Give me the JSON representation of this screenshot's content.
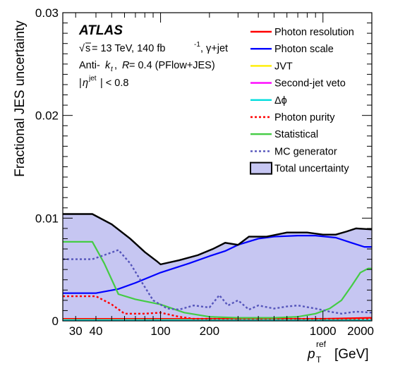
{
  "chart_data": {
    "type": "line",
    "title": "",
    "ylabel": "Fractional JES uncertainty",
    "xlabel": {
      "symbol": "p",
      "subscript": "T",
      "superscript": "ref",
      "unit": "[GeV]"
    },
    "x_scale": "log",
    "xlim": [
      25,
      2000
    ],
    "ylim": [
      0,
      0.03
    ],
    "x_ticks": [
      30,
      40,
      100,
      200,
      1000,
      2000
    ],
    "x_tick_labels": [
      "30",
      "40",
      "100",
      "200",
      "1000",
      "2000"
    ],
    "y_ticks": [
      0,
      0.01,
      0.02,
      0.03
    ],
    "y_tick_labels": [
      "0",
      "0.01",
      "0.02",
      "0.03"
    ],
    "grid": false,
    "legend_position": "top-right",
    "annotations": {
      "experiment": "ATLAS",
      "energy_line": {
        "sqrt_s": "s",
        "rest": " = 13 TeV, 140 fb",
        "sup": "-1",
        "tail": ", γ+jet"
      },
      "algo_line": {
        "pre": "Anti-",
        "k": "k",
        "k_sub": "t",
        "mid": ", ",
        "R": "R",
        "post": " = 0.4 (PFlow+JES)"
      },
      "eta_line": {
        "pre": "|",
        "eta": "η",
        "sup": "jet",
        "post": "| < 0.8"
      }
    },
    "series": [
      {
        "name": "Photon resolution",
        "color": "#ff0000",
        "style": "solid",
        "x": [
          25,
          100,
          200,
          500,
          1000,
          2000
        ],
        "y": [
          0.0002,
          0.0002,
          0.0002,
          0.0002,
          0.0002,
          0.0003
        ]
      },
      {
        "name": "Photon scale",
        "color": "#0000ff",
        "style": "solid",
        "x": [
          25,
          40,
          55,
          70,
          100,
          150,
          200,
          250,
          300,
          400,
          500,
          700,
          900,
          1200,
          1500,
          1800,
          2000
        ],
        "y": [
          0.0027,
          0.0027,
          0.0031,
          0.0037,
          0.0047,
          0.0056,
          0.0063,
          0.0068,
          0.0074,
          0.008,
          0.0082,
          0.0083,
          0.0083,
          0.0081,
          0.0076,
          0.0072,
          0.0072
        ]
      },
      {
        "name": "JVT",
        "color": "#ffee00",
        "style": "solid",
        "x": [
          25,
          2000
        ],
        "y": [
          0.0001,
          0.0001
        ]
      },
      {
        "name": "Second-jet veto",
        "color": "#ff00ff",
        "style": "solid",
        "x": [
          25,
          2000
        ],
        "y": [
          5e-05,
          5e-05
        ]
      },
      {
        "name": "Δϕ",
        "color": "#00dddd",
        "style": "solid",
        "x": [
          25,
          2000
        ],
        "y": [
          8e-05,
          8e-05
        ]
      },
      {
        "name": "Photon purity",
        "color": "#ff0000",
        "style": "dotted",
        "x": [
          25,
          40,
          50,
          60,
          80,
          100,
          130,
          160,
          200,
          300,
          500,
          1000,
          2000
        ],
        "y": [
          0.0024,
          0.0024,
          0.0016,
          0.0007,
          0.0007,
          0.0008,
          0.0004,
          0.0002,
          0.0002,
          0.0002,
          0.0002,
          0.0002,
          0.0002
        ]
      },
      {
        "name": "Statistical",
        "color": "#44cc44",
        "style": "solid",
        "x": [
          25,
          38,
          45,
          55,
          70,
          100,
          140,
          200,
          300,
          500,
          700,
          900,
          1100,
          1300,
          1500,
          1700,
          1900,
          2000
        ],
        "y": [
          0.0077,
          0.0077,
          0.0056,
          0.0026,
          0.0021,
          0.0016,
          0.0008,
          0.0004,
          0.0003,
          0.0003,
          0.0004,
          0.0007,
          0.0012,
          0.002,
          0.0034,
          0.0047,
          0.0051,
          0.0051
        ]
      },
      {
        "name": "MC generator",
        "color": "#5555bb",
        "style": "dotted",
        "x": [
          25,
          38,
          45,
          55,
          65,
          75,
          90,
          110,
          130,
          160,
          200,
          230,
          260,
          300,
          350,
          400,
          500,
          600,
          700,
          900,
          1100,
          1300,
          1600,
          2000
        ],
        "y": [
          0.006,
          0.006,
          0.0064,
          0.0069,
          0.0056,
          0.004,
          0.002,
          0.0012,
          0.0011,
          0.0015,
          0.0013,
          0.0025,
          0.0015,
          0.002,
          0.0011,
          0.0015,
          0.0012,
          0.0014,
          0.0015,
          0.0012,
          0.0009,
          0.0007,
          0.0009,
          0.0008
        ]
      },
      {
        "name": "Total uncertainty",
        "color": "#000000",
        "fill": "#c6c6f2",
        "style": "band",
        "x": [
          25,
          38,
          50,
          65,
          80,
          95,
          100,
          130,
          170,
          210,
          250,
          300,
          350,
          450,
          600,
          800,
          1000,
          1200,
          1400,
          1600,
          2000
        ],
        "y": [
          0.0104,
          0.0104,
          0.0094,
          0.008,
          0.0067,
          0.0058,
          0.0055,
          0.0059,
          0.0064,
          0.007,
          0.0076,
          0.0074,
          0.0082,
          0.0082,
          0.0086,
          0.0086,
          0.0084,
          0.0084,
          0.0087,
          0.009,
          0.0089
        ]
      }
    ]
  }
}
